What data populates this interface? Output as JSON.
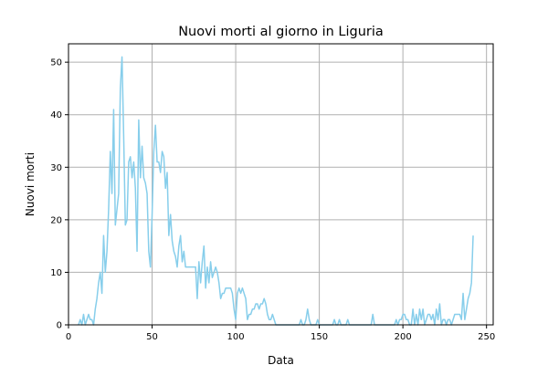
{
  "chart_data": {
    "type": "line",
    "title": "Nuovi morti al giorno in Liguria",
    "xlabel": "Data",
    "ylabel": "Nuovi morti",
    "xlim": [
      0,
      254
    ],
    "ylim": [
      0,
      53.5
    ],
    "xticks": [
      0,
      50,
      100,
      150,
      200,
      250
    ],
    "yticks": [
      0,
      10,
      20,
      30,
      40,
      50
    ],
    "grid": true,
    "colors": {
      "line": "#87ceeb",
      "grid": "#b0b0b0",
      "axes": "#000000"
    },
    "series": [
      {
        "x": [
          6,
          7,
          8,
          9,
          10,
          11,
          12,
          13,
          14,
          15,
          16,
          17,
          18,
          19,
          20,
          21,
          22,
          23,
          24,
          25,
          26,
          27,
          28,
          29,
          30,
          31,
          32,
          33,
          34,
          35,
          36,
          37,
          38,
          39,
          40,
          41,
          42,
          43,
          44,
          45,
          46,
          47,
          48,
          49,
          50,
          51,
          52,
          53,
          54,
          55,
          56,
          57,
          58,
          59,
          60,
          61,
          62,
          63,
          64,
          65,
          66,
          67,
          68,
          69,
          70,
          71,
          72,
          73,
          74,
          75,
          76,
          77,
          78,
          79,
          80,
          81,
          82,
          83,
          84,
          85,
          86,
          87,
          88,
          89,
          90,
          91,
          92,
          93,
          94,
          95,
          96,
          97,
          98,
          99,
          100,
          101,
          102,
          103,
          104,
          105,
          106,
          107,
          108,
          109,
          110,
          111,
          112,
          113,
          114,
          115,
          116,
          117,
          118,
          119,
          120,
          121,
          122,
          123,
          124,
          125,
          126,
          127,
          128,
          129,
          130,
          131,
          132,
          133,
          134,
          135,
          136,
          137,
          138,
          139,
          140,
          141,
          142,
          143,
          144,
          145,
          146,
          147,
          148,
          149,
          150,
          151,
          152,
          153,
          154,
          155,
          156,
          157,
          158,
          159,
          160,
          161,
          162,
          163,
          164,
          165,
          166,
          167,
          168,
          169,
          170,
          171,
          172,
          173,
          174,
          175,
          176,
          177,
          178,
          179,
          180,
          181,
          182,
          183,
          184,
          185,
          186,
          187,
          188,
          189,
          190,
          191,
          192,
          193,
          194,
          195,
          196,
          197,
          198,
          199,
          200,
          201,
          202,
          203,
          204,
          205,
          206,
          207,
          208,
          209,
          210,
          211,
          212,
          213,
          214,
          215,
          216,
          217,
          218,
          219,
          220,
          221,
          222,
          223,
          224,
          225,
          226,
          227,
          228,
          229,
          230,
          231,
          232,
          233,
          234,
          235,
          236,
          237,
          238,
          239,
          240,
          241,
          242
        ],
        "y": [
          0,
          1,
          0,
          2,
          0,
          1,
          2,
          1,
          1,
          0,
          3,
          5,
          8,
          10,
          6,
          17,
          10,
          14,
          22,
          33,
          25,
          41,
          19,
          22,
          25,
          45,
          51,
          36,
          19,
          20,
          31,
          32,
          28,
          31,
          26,
          14,
          39,
          28,
          34,
          28,
          27,
          25,
          14,
          11,
          21,
          33,
          38,
          31,
          31,
          29,
          33,
          32,
          26,
          29,
          17,
          21,
          16,
          14,
          13,
          11,
          15,
          17,
          12,
          14,
          11,
          11,
          11,
          11,
          11,
          11,
          11,
          5,
          12,
          8,
          12,
          15,
          7,
          11,
          8,
          12,
          9,
          10,
          11,
          10,
          8,
          5,
          6,
          6,
          7,
          7,
          7,
          7,
          6,
          3,
          1,
          6,
          7,
          6,
          7,
          6,
          5,
          1,
          2,
          2,
          3,
          3,
          4,
          4,
          3,
          4,
          4,
          5,
          4,
          2,
          1,
          1,
          2,
          1,
          0,
          0,
          0,
          0,
          0,
          0,
          0,
          0,
          0,
          0,
          0,
          0,
          0,
          0,
          0,
          1,
          0,
          0,
          1,
          3,
          1,
          0,
          0,
          0,
          0,
          1,
          0,
          0,
          0,
          0,
          0,
          0,
          0,
          0,
          0,
          1,
          0,
          0,
          1,
          0,
          0,
          0,
          0,
          1,
          0,
          0,
          0,
          0,
          0,
          0,
          0,
          0,
          0,
          0,
          0,
          0,
          0,
          0,
          2,
          0,
          0,
          0,
          0,
          0,
          0,
          0,
          0,
          0,
          0,
          0,
          0,
          0,
          1,
          0,
          1,
          1,
          2,
          2,
          1,
          1,
          0,
          0,
          3,
          0,
          2,
          0,
          3,
          1,
          3,
          0,
          1,
          2,
          2,
          1,
          2,
          0,
          3,
          1,
          4,
          0,
          1,
          1,
          0,
          1,
          1,
          0,
          1,
          2,
          2,
          2,
          2,
          1,
          6,
          1,
          3,
          5,
          6,
          8,
          17
        ]
      }
    ]
  }
}
